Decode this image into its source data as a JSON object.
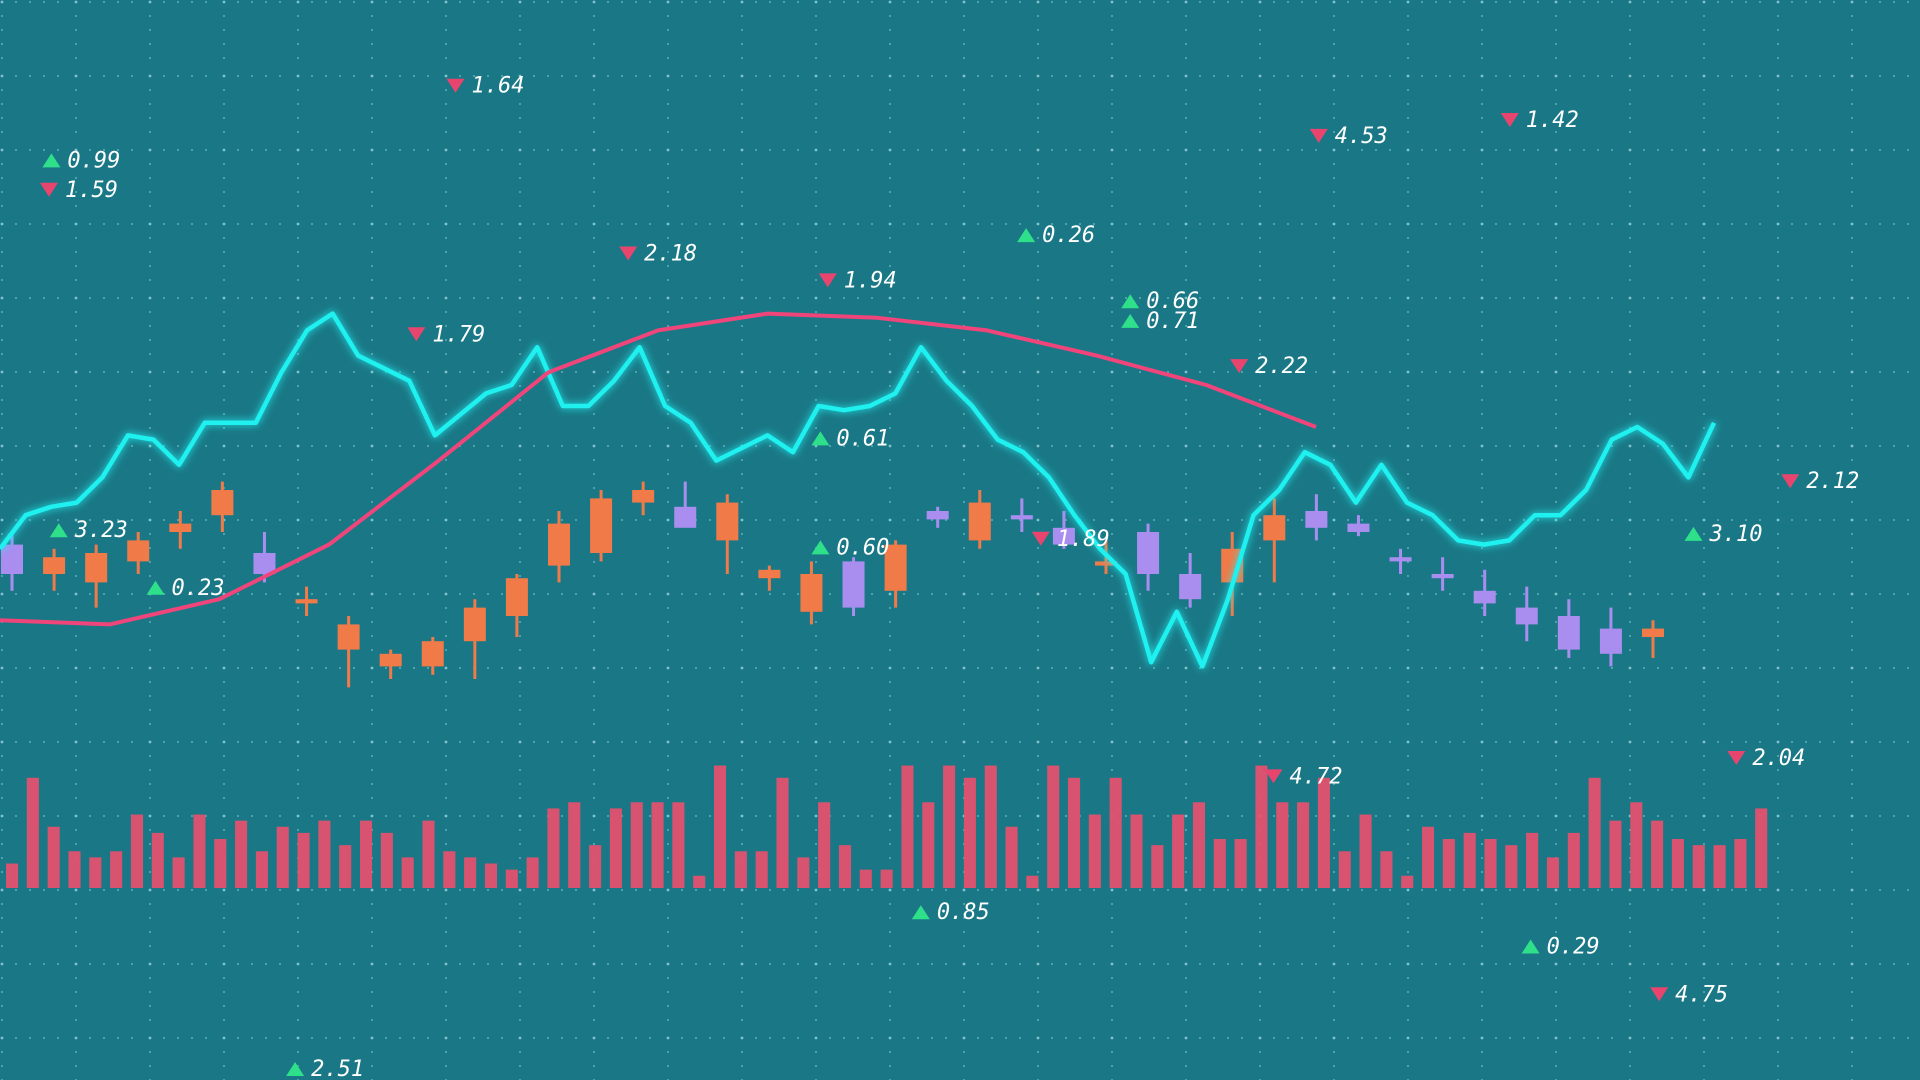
{
  "tickers": [
    {
      "label": "1.64",
      "direction": "down"
    },
    {
      "label": "0.99",
      "direction": "up"
    },
    {
      "label": "1.59",
      "direction": "down"
    },
    {
      "label": "2.18",
      "direction": "down"
    },
    {
      "label": "1.94",
      "direction": "down"
    },
    {
      "label": "0.26",
      "direction": "up"
    },
    {
      "label": "4.53",
      "direction": "down"
    },
    {
      "label": "1.42",
      "direction": "down"
    },
    {
      "label": "0.66",
      "direction": "up"
    },
    {
      "label": "0.71",
      "direction": "up"
    },
    {
      "label": "1.79",
      "direction": "down"
    },
    {
      "label": "2.22",
      "direction": "down"
    },
    {
      "label": "0.61",
      "direction": "up"
    },
    {
      "label": "3.23",
      "direction": "up"
    },
    {
      "label": "0.23",
      "direction": "up"
    },
    {
      "label": "0.60",
      "direction": "up"
    },
    {
      "label": "1.89",
      "direction": "down"
    },
    {
      "label": "2.12",
      "direction": "down"
    },
    {
      "label": "3.10",
      "direction": "up"
    },
    {
      "label": "4.72",
      "direction": "down"
    },
    {
      "label": "2.04",
      "direction": "down"
    },
    {
      "label": "0.85",
      "direction": "up"
    },
    {
      "label": "0.29",
      "direction": "up"
    },
    {
      "label": "4.75",
      "direction": "down"
    },
    {
      "label": "2.51",
      "direction": "up"
    }
  ],
  "up_color": "#2ee08a",
  "down_color": "#e8456e",
  "chart_data": [
    {
      "type": "line",
      "ylim": [
        0,
        100
      ],
      "series": [
        {
          "color": "#1ff0f0",
          "values": [
            36,
            44,
            46,
            47,
            53,
            63,
            62,
            56,
            66,
            66,
            66,
            78,
            88,
            92,
            82,
            79,
            76,
            63,
            68,
            73,
            75,
            84,
            70,
            70,
            76,
            84,
            70,
            66,
            57,
            60,
            63,
            59,
            70,
            69,
            70,
            73,
            84,
            76,
            70,
            62,
            59,
            53,
            44,
            36,
            30,
            9,
            21,
            8,
            24,
            44,
            50,
            59,
            56,
            47,
            56,
            47,
            44,
            38,
            37,
            38,
            44,
            44,
            50,
            62,
            65,
            61,
            53,
            66
          ]
        },
        {
          "color": "#f0457a",
          "values": [
            19,
            18,
            24,
            37,
            57,
            78,
            88,
            92,
            91,
            88,
            82,
            75,
            65
          ]
        }
      ]
    },
    {
      "type": "candlestick",
      "ylim": [
        0,
        100
      ],
      "up_color": "#f07a48",
      "down_color": "#a98ef0",
      "open": [
        37,
        30,
        28,
        33,
        40,
        44,
        35,
        23,
        12,
        8,
        8,
        14,
        20,
        32,
        35,
        47,
        46,
        38,
        29,
        21,
        33,
        26,
        45,
        38,
        44,
        41,
        32,
        40,
        30,
        28,
        38,
        45,
        42,
        34,
        30,
        26,
        22,
        20,
        17,
        15
      ],
      "high": [
        40,
        36,
        37,
        40,
        45,
        52,
        40,
        27,
        20,
        12,
        15,
        24,
        30,
        45,
        50,
        52,
        52,
        49,
        32,
        33,
        34,
        38,
        46,
        50,
        48,
        45,
        38,
        42,
        35,
        40,
        48,
        49,
        44,
        36,
        34,
        31,
        27,
        24,
        22,
        19
      ],
      "low": [
        26,
        26,
        22,
        30,
        36,
        40,
        28,
        20,
        3,
        5,
        6,
        5,
        15,
        28,
        33,
        44,
        42,
        30,
        26,
        18,
        20,
        22,
        41,
        36,
        40,
        36,
        30,
        26,
        22,
        20,
        28,
        38,
        39,
        30,
        26,
        20,
        14,
        10,
        8,
        10
      ],
      "close": [
        30,
        34,
        35,
        38,
        42,
        50,
        30,
        24,
        18,
        11,
        14,
        22,
        29,
        42,
        48,
        50,
        41,
        47,
        31,
        30,
        22,
        37,
        43,
        47,
        43,
        37,
        33,
        30,
        24,
        36,
        44,
        41,
        40,
        33,
        29,
        23,
        18,
        12,
        11,
        17
      ]
    },
    {
      "type": "bar",
      "color": "#e8506e",
      "values": [
        20,
        90,
        50,
        30,
        25,
        30,
        60,
        45,
        25,
        60,
        40,
        55,
        30,
        50,
        45,
        55,
        35,
        55,
        45,
        25,
        55,
        30,
        25,
        20,
        15,
        25,
        65,
        70,
        35,
        65,
        70,
        70,
        70,
        10,
        100,
        30,
        30,
        90,
        25,
        70,
        35,
        15,
        15,
        100,
        70,
        100,
        90,
        100,
        50,
        10,
        100,
        90,
        60,
        90,
        60,
        35,
        60,
        70,
        40,
        40,
        100,
        70,
        70,
        90,
        30,
        60,
        30,
        10,
        50,
        40,
        45,
        40,
        35,
        45,
        25,
        45,
        90,
        55,
        70,
        55,
        40,
        35,
        35,
        40,
        65
      ]
    }
  ]
}
